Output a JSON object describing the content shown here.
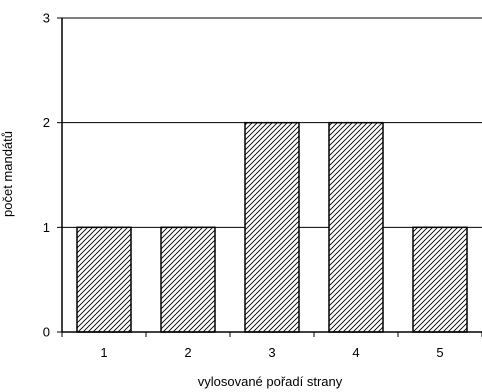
{
  "chart_data": {
    "type": "bar",
    "categories": [
      "1",
      "2",
      "3",
      "4",
      "5"
    ],
    "values": [
      1,
      1,
      2,
      2,
      1
    ],
    "xlabel": "vylosované pořadí strany",
    "ylabel": "počet mandátů",
    "ylim": [
      0,
      3
    ],
    "yticks": [
      "0",
      "1",
      "2",
      "3"
    ],
    "grid": true,
    "legend": "none",
    "bar_fill": "diagonal-hatch",
    "colors": {
      "bar_fill": "#ffffff",
      "hatch": "#000000",
      "bar_stroke": "#000000",
      "grid": "#000000",
      "axis": "#000000"
    }
  }
}
